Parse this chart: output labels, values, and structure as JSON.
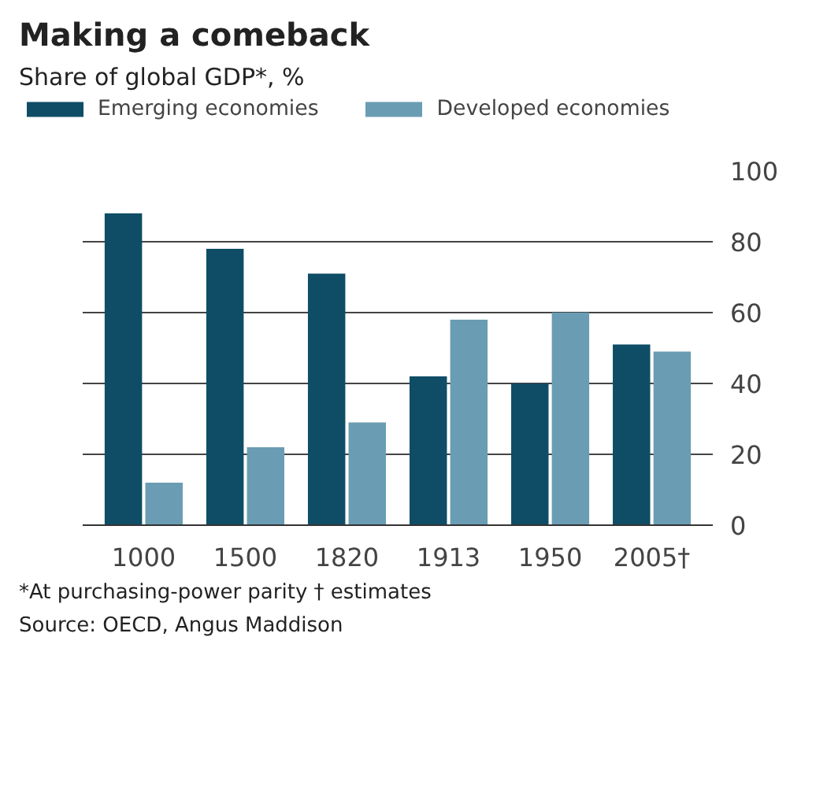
{
  "chart_data": {
    "type": "bar",
    "title": "Making a comeback",
    "subtitle": "Share of global GDP*, %",
    "categories": [
      "1000",
      "1500",
      "1820",
      "1913",
      "1950",
      "2005†"
    ],
    "series": [
      {
        "name": "Emerging economies",
        "color": "#0f4d66",
        "values": [
          88,
          78,
          71,
          42,
          40,
          51
        ]
      },
      {
        "name": "Developed economies",
        "color": "#6a9db3",
        "values": [
          12,
          22,
          29,
          58,
          60,
          49
        ]
      }
    ],
    "ylim": [
      0,
      100
    ],
    "yticks": [
      0,
      20,
      40,
      60,
      80,
      100
    ],
    "grid": "y",
    "legend": "top",
    "annotations": [
      "*At purchasing-power parity   † estimates",
      "Source: OECD, Angus Maddison"
    ]
  }
}
